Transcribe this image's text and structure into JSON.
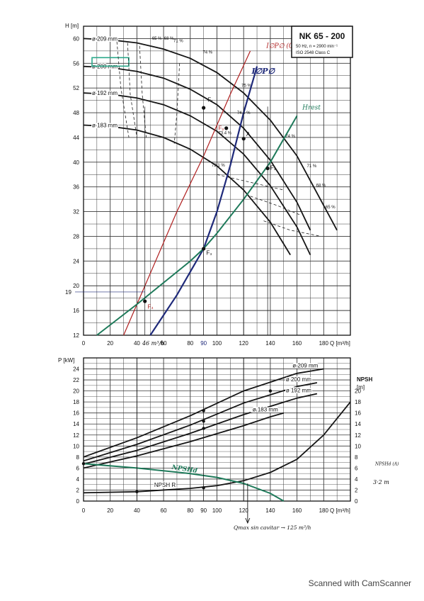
{
  "title_box": {
    "model": "NK 65 - 200",
    "freq_speed": "50 Hz, n = 2900 min⁻¹",
    "standard": "ISO 2548 Class C"
  },
  "footer": {
    "scanner": "Scanned with CamScanner"
  },
  "colors": {
    "paper": "#ffffff",
    "grid": "#3a3a3a",
    "ink": "#111111",
    "blue_ink": "#1f2a7a",
    "red_ink": "#b02020",
    "green_ink": "#1e7a5a",
    "highlight": "#2aa88a"
  },
  "chart_data": [
    {
      "type": "line",
      "name": "head",
      "ylabel": "H [m]",
      "xlabel": "Q [m³/h]",
      "xlim": [
        0,
        200
      ],
      "ylim": [
        12,
        62
      ],
      "x_ticks": [
        "0",
        "20",
        "40",
        "60",
        "80",
        "90",
        "100",
        "120",
        "140",
        "160",
        "180"
      ],
      "y_ticks": [
        "12",
        "16",
        "20",
        "24",
        "28",
        "32",
        "36",
        "40",
        "44",
        "48",
        "52",
        "56",
        "60"
      ],
      "grid": true,
      "series": [
        {
          "name": "ø 209 mm",
          "x": [
            0,
            20,
            40,
            60,
            80,
            100,
            120,
            140,
            160,
            180,
            190
          ],
          "y": [
            60,
            59.8,
            59.3,
            58.3,
            56.8,
            54.5,
            51.2,
            46.8,
            41,
            33,
            29
          ]
        },
        {
          "name": "ø 200 mm",
          "x": [
            0,
            20,
            40,
            60,
            80,
            100,
            120,
            140,
            160,
            170
          ],
          "y": [
            55.5,
            55.3,
            54.7,
            53.6,
            51.8,
            49.3,
            45.5,
            40.3,
            33.5,
            29
          ]
        },
        {
          "name": "ø 192 mm",
          "x": [
            0,
            20,
            40,
            60,
            80,
            100,
            120,
            140,
            160,
            170
          ],
          "y": [
            51.2,
            51,
            50.4,
            49.3,
            47.5,
            45,
            41.3,
            36.2,
            29.5,
            25
          ]
        },
        {
          "name": "ø 183 mm",
          "x": [
            0,
            20,
            40,
            60,
            80,
            100,
            120,
            140,
            155
          ],
          "y": [
            46,
            45.8,
            45.2,
            44,
            42.1,
            39.4,
            35.5,
            30.3,
            25
          ]
        }
      ],
      "efficiency_labels": [
        "65 %",
        "68 %",
        "71 %",
        "74 %",
        "75 %",
        "74.5 %",
        "73.4 %",
        "72.1 %",
        "74 %",
        "71 %",
        "68 %",
        "65 %"
      ],
      "annotations": {
        "ipso_red": "I∅P∅ (0)",
        "ipso_blue": "I∅P∅",
        "hrest": "Hrest",
        "point_f1": "F₁",
        "point_f2": "F₂",
        "point_f3": "F₃",
        "point_f4": "F₄",
        "point_a": "A",
        "y19": "19",
        "x46": "46 m³/h",
        "x90": "90",
        "selected_diameter": "ø 200 mm"
      },
      "system_curve_green": {
        "x": [
          10,
          40,
          60,
          80,
          90,
          100,
          120,
          140,
          160
        ],
        "y": [
          12,
          17,
          20.5,
          24,
          26,
          28.5,
          34,
          40,
          47.5
        ]
      },
      "line_red": {
        "x": [
          30,
          50,
          70,
          90,
          110,
          125
        ],
        "y": [
          12,
          22,
          32,
          41,
          51,
          58
        ]
      },
      "line_blue": {
        "x": [
          50,
          70,
          90,
          100,
          110,
          120,
          130
        ],
        "y": [
          12,
          18.5,
          26,
          32,
          39.5,
          48,
          55.5
        ]
      }
    },
    {
      "type": "line",
      "name": "power_npsh",
      "ylabel": "P [kW]",
      "y2label": "NPSH [m]",
      "xlabel": "Q [m³/h]",
      "xlim": [
        0,
        200
      ],
      "ylim": [
        0,
        26
      ],
      "x_ticks": [
        "0",
        "20",
        "40",
        "60",
        "80",
        "90",
        "100",
        "120",
        "140",
        "160",
        "180"
      ],
      "y_ticks": [
        "0",
        "2",
        "4",
        "6",
        "8",
        "10",
        "12",
        "14",
        "16",
        "18",
        "20",
        "22",
        "24"
      ],
      "y2_ticks": [
        "0",
        "2",
        "4",
        "6",
        "8",
        "10",
        "12",
        "14",
        "16",
        "18",
        "20"
      ],
      "grid": true,
      "series": [
        {
          "name": "ø 209 mm",
          "x": [
            0,
            40,
            80,
            120,
            160,
            180
          ],
          "y": [
            8,
            11.5,
            15.5,
            20,
            23.2,
            24
          ]
        },
        {
          "name": "ø 200 mm",
          "x": [
            0,
            40,
            80,
            120,
            160,
            175
          ],
          "y": [
            7.3,
            10.3,
            13.8,
            17.8,
            20.8,
            21.5
          ]
        },
        {
          "name": "ø 192 mm",
          "x": [
            0,
            40,
            80,
            120,
            160,
            175
          ],
          "y": [
            6.7,
            9.2,
            12.3,
            15.7,
            18.7,
            19.5
          ]
        },
        {
          "name": "ø 183 mm",
          "x": [
            0,
            40,
            80,
            120,
            140,
            150
          ],
          "y": [
            6,
            8.2,
            10.8,
            13.7,
            15.3,
            16
          ]
        },
        {
          "name": "NPSH R",
          "x": [
            0,
            40,
            80,
            100,
            120,
            140,
            160,
            180,
            200
          ],
          "y": [
            1.5,
            1.7,
            2.3,
            2.8,
            3.7,
            5.2,
            7.6,
            12,
            18
          ]
        },
        {
          "name": "NPSH d",
          "x": [
            0,
            40,
            80,
            100,
            120,
            140,
            150
          ],
          "y": [
            6.8,
            6,
            5,
            4.3,
            3.2,
            1.4,
            0
          ]
        }
      ],
      "annotations": {
        "npshd_label": "NPSHd",
        "npshr_label": "NPSH R",
        "npsh_note": "NPSHd (A)",
        "npsh_value": "3·2 m",
        "qmax_note": "Qmax sin cavitar → 125 m³/h"
      }
    }
  ]
}
